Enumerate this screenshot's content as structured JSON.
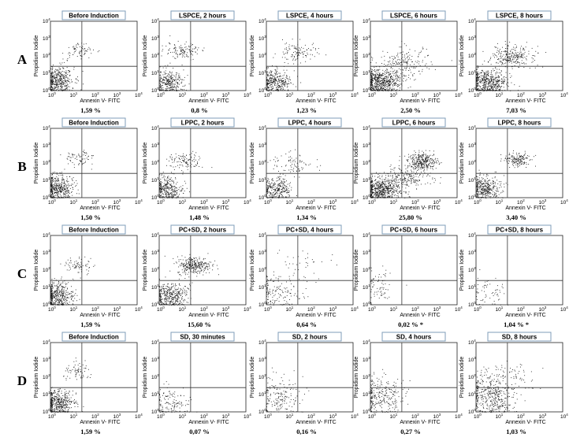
{
  "chart_data": {
    "type": "scatter",
    "x_axis_label": "Annexin V- FITC",
    "y_axis_label": "Propidium Iodide",
    "tick_labels": [
      "10",
      "10",
      "10",
      "10",
      "10"
    ],
    "tick_exponents": [
      "0",
      "1",
      "2",
      "3",
      "4"
    ],
    "axis_log_range": [
      0,
      4
    ],
    "quadrant_gate_log": {
      "x": 1.45,
      "y": 1.4
    },
    "rows": [
      {
        "label": "A",
        "panels": [
          {
            "title": "Before Induction",
            "percent": "1,59 %"
          },
          {
            "title": "LSPCE, 2 hours",
            "percent": "0,8 %"
          },
          {
            "title": "LSPCE, 4 hours",
            "percent": "1,23 %"
          },
          {
            "title": "LSPCE, 6 hours",
            "percent": "2,50 %"
          },
          {
            "title": "LSPCE, 8 hours",
            "percent": "7,03 %"
          }
        ]
      },
      {
        "label": "B",
        "panels": [
          {
            "title": "Before Induction",
            "percent": "1,50 %"
          },
          {
            "title": "LPPC, 2 hours",
            "percent": "1,48 %"
          },
          {
            "title": "LPPC, 4 hours",
            "percent": "1,34 %"
          },
          {
            "title": "LPPC, 6 hours",
            "percent": "25,80 %"
          },
          {
            "title": "LPPC, 8 hours",
            "percent": "3,40 %"
          }
        ]
      },
      {
        "label": "C",
        "panels": [
          {
            "title": "Before Induction",
            "percent": "1,59 %"
          },
          {
            "title": "PC+SD, 2 hours",
            "percent": "15,60 %"
          },
          {
            "title": "PC+SD, 4 hours",
            "percent": "0,64 %"
          },
          {
            "title": "PC+SD, 6 hours",
            "percent": "0,02 % *"
          },
          {
            "title": "PC+SD, 8 hours",
            "percent": "1,04 % *"
          }
        ]
      },
      {
        "label": "D",
        "panels": [
          {
            "title": "Before Induction",
            "percent": "1,59 %"
          },
          {
            "title": "SD, 30 minutes",
            "percent": "0,07 %"
          },
          {
            "title": "SD, 2 hours",
            "percent": "0,16 %"
          },
          {
            "title": "SD, 4 hours",
            "percent": "0,27 %"
          },
          {
            "title": "SD, 8 hours",
            "percent": "1,03 %"
          }
        ]
      }
    ]
  },
  "colors": {
    "dots": "#1a1a1a",
    "title_border": "#7f9db9",
    "axis": "#222222",
    "gate": "#333333"
  }
}
